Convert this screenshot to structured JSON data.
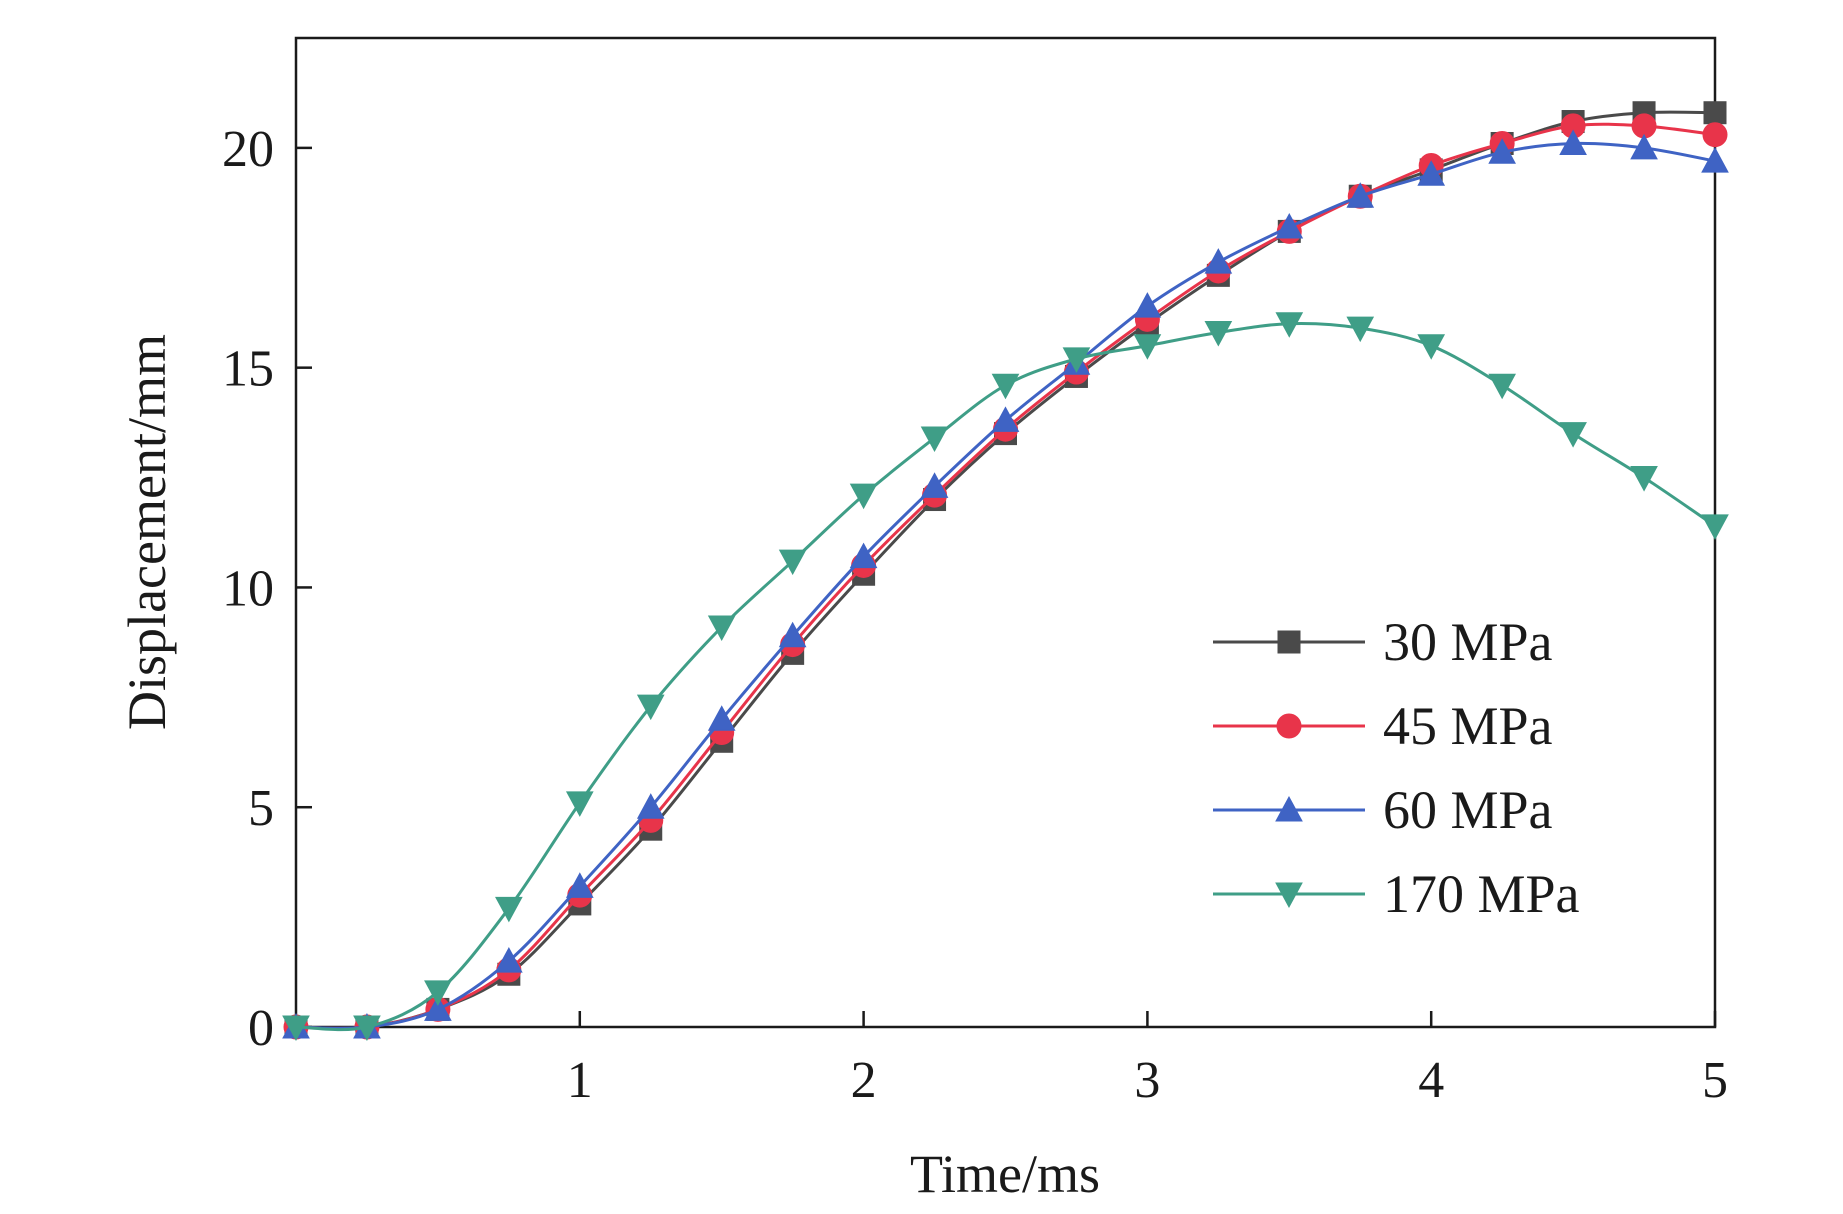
{
  "chart_data": {
    "type": "line",
    "xlabel": "Time/ms",
    "ylabel": "Displacement/mm",
    "xlim": [
      0,
      5
    ],
    "ylim": [
      0,
      22.5
    ],
    "xticks": [
      1,
      2,
      3,
      4,
      5
    ],
    "yticks": [
      0,
      5,
      10,
      15,
      20
    ],
    "grid": false,
    "legend_position": "right-middle",
    "x": [
      0,
      0.25,
      0.5,
      0.75,
      1.0,
      1.25,
      1.5,
      1.75,
      2.0,
      2.25,
      2.5,
      2.75,
      3.0,
      3.25,
      3.5,
      3.75,
      4.0,
      4.25,
      4.5,
      4.75,
      5.0
    ],
    "series": [
      {
        "name": "30 MPa",
        "marker": "square",
        "color": "#4a4a4a",
        "values": [
          0,
          0,
          0.4,
          1.2,
          2.8,
          4.5,
          6.5,
          8.5,
          10.3,
          12.0,
          13.5,
          14.8,
          16.0,
          17.1,
          18.1,
          18.9,
          19.5,
          20.1,
          20.6,
          20.8,
          20.8
        ]
      },
      {
        "name": "45 MPa",
        "marker": "circle",
        "color": "#e8344a",
        "values": [
          0,
          0,
          0.4,
          1.3,
          3.0,
          4.7,
          6.7,
          8.7,
          10.5,
          12.1,
          13.6,
          14.9,
          16.1,
          17.2,
          18.1,
          18.9,
          19.6,
          20.1,
          20.5,
          20.5,
          20.3
        ]
      },
      {
        "name": "60 MPa",
        "marker": "triangle-up",
        "color": "#3f63c4",
        "values": [
          0,
          0,
          0.4,
          1.5,
          3.2,
          5.0,
          7.0,
          8.9,
          10.7,
          12.3,
          13.8,
          15.1,
          16.4,
          17.4,
          18.2,
          18.9,
          19.4,
          19.9,
          20.1,
          20.0,
          19.7
        ]
      },
      {
        "name": "170 MPa",
        "marker": "triangle-down",
        "color": "#3f9e87",
        "values": [
          0,
          0,
          0.8,
          2.7,
          5.1,
          7.3,
          9.1,
          10.6,
          12.1,
          13.4,
          14.6,
          15.2,
          15.5,
          15.8,
          16.0,
          15.9,
          15.5,
          14.6,
          13.5,
          12.5,
          11.4
        ]
      }
    ]
  }
}
